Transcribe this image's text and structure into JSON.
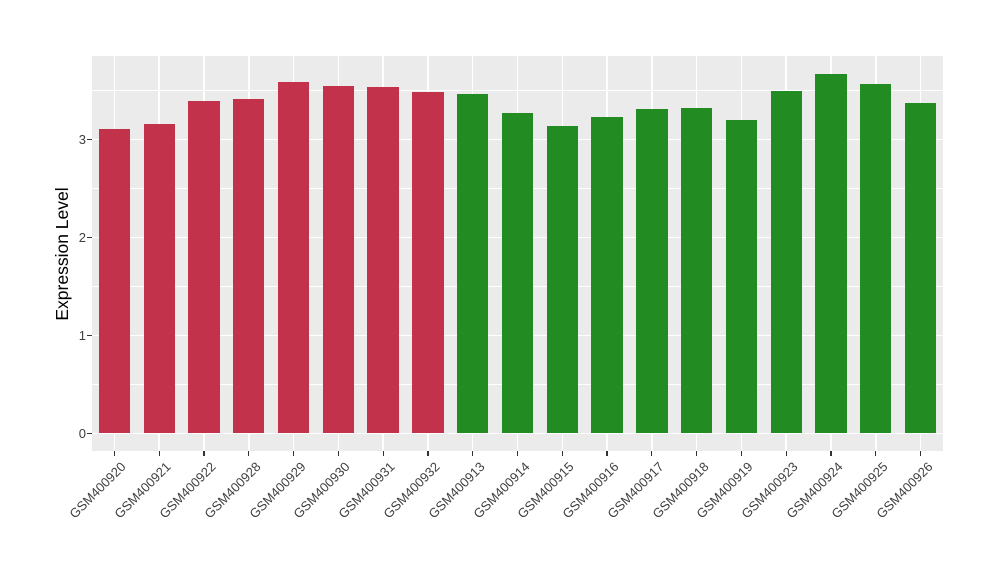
{
  "chart_data": {
    "type": "bar",
    "title": "",
    "xlabel": "",
    "ylabel": "Expression Level",
    "categories": [
      "GSM400920",
      "GSM400921",
      "GSM400922",
      "GSM400928",
      "GSM400929",
      "GSM400930",
      "GSM400931",
      "GSM400932",
      "GSM400913",
      "GSM400914",
      "GSM400915",
      "GSM400916",
      "GSM400917",
      "GSM400918",
      "GSM400919",
      "GSM400923",
      "GSM400924",
      "GSM400925",
      "GSM400926"
    ],
    "values": [
      3.11,
      3.16,
      3.39,
      3.41,
      3.58,
      3.54,
      3.53,
      3.48,
      3.46,
      3.27,
      3.14,
      3.23,
      3.31,
      3.32,
      3.2,
      3.49,
      3.67,
      3.56,
      3.37
    ],
    "groups": [
      "A",
      "A",
      "A",
      "A",
      "A",
      "A",
      "A",
      "A",
      "B",
      "B",
      "B",
      "B",
      "B",
      "B",
      "B",
      "B",
      "B",
      "B",
      "B"
    ],
    "group_colors": {
      "A": "#C3324B",
      "B": "#228B22"
    },
    "yticks": [
      0,
      1,
      2,
      3
    ],
    "minor_yticks": [
      0.5,
      1.5,
      2.5,
      3.5
    ],
    "ylim": [
      -0.18,
      3.85
    ],
    "grid": "white major and minor horizontal lines, white vertical lines at category centers, on gray panel",
    "legend_position": "none",
    "bar_width_ratio": 0.7
  },
  "style": {
    "panel_bg": "#EBEBEB",
    "grid_color": "#FFFFFF",
    "axis_text_color": "#404040",
    "axis_title_color": "#000000",
    "tick_color": "#333333",
    "outer_bg": "#FFFFFF"
  }
}
